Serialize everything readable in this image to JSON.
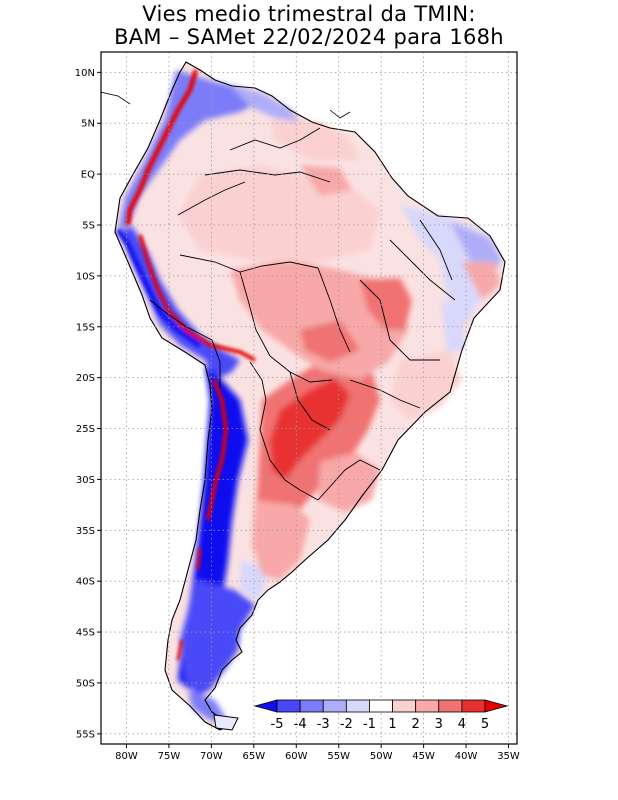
{
  "title": {
    "line1": "Vies medio trimestral da TMIN:",
    "line2": "BAM – SAMet 22/02/2024  para 168h"
  },
  "map": {
    "lon_range": [
      -83,
      -34
    ],
    "lat_range": [
      -56,
      12
    ],
    "lat_ticks": [
      {
        "value": 10,
        "label": "10N"
      },
      {
        "value": 5,
        "label": "5N"
      },
      {
        "value": 0,
        "label": "EQ"
      },
      {
        "value": -5,
        "label": "5S"
      },
      {
        "value": -10,
        "label": "10S"
      },
      {
        "value": -15,
        "label": "15S"
      },
      {
        "value": -20,
        "label": "20S"
      },
      {
        "value": -25,
        "label": "25S"
      },
      {
        "value": -30,
        "label": "30S"
      },
      {
        "value": -35,
        "label": "35S"
      },
      {
        "value": -40,
        "label": "40S"
      },
      {
        "value": -45,
        "label": "45S"
      },
      {
        "value": -50,
        "label": "50S"
      },
      {
        "value": -55,
        "label": "55S"
      }
    ],
    "lon_ticks": [
      {
        "value": -80,
        "label": "80W"
      },
      {
        "value": -75,
        "label": "75W"
      },
      {
        "value": -70,
        "label": "70W"
      },
      {
        "value": -65,
        "label": "65W"
      },
      {
        "value": -60,
        "label": "60W"
      },
      {
        "value": -55,
        "label": "55W"
      },
      {
        "value": -50,
        "label": "50W"
      },
      {
        "value": -45,
        "label": "45W"
      },
      {
        "value": -40,
        "label": "40W"
      },
      {
        "value": -35,
        "label": "35W"
      }
    ],
    "grid": true,
    "colorbar": {
      "labels": [
        "-5",
        "-4",
        "-3",
        "-2",
        "-1",
        "1",
        "2",
        "3",
        "4",
        "5"
      ],
      "colors": [
        "#1010f0",
        "#4848f8",
        "#7c7cf8",
        "#aeaef8",
        "#d8d8fb",
        "#ffffff",
        "#fbd0d0",
        "#f8a8a8",
        "#f07272",
        "#e83030",
        "#e80000"
      ]
    }
  }
}
